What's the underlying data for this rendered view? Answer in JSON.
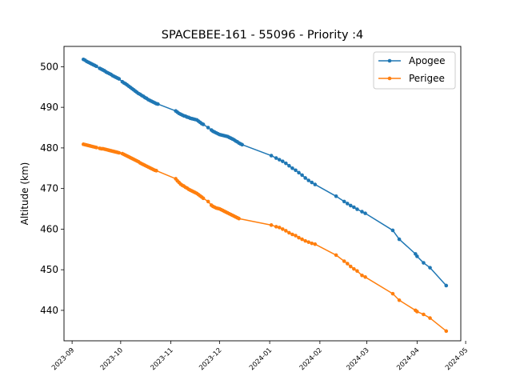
{
  "chart_data": {
    "type": "line",
    "title": "SPACEBEE-161 - 55096 - Priority :4",
    "xlabel": "",
    "ylabel": "Altitude (km)",
    "x_axis_type": "date",
    "xlim": [
      "2023-08-27",
      "2024-04-28"
    ],
    "ylim": [
      432.5,
      505
    ],
    "y_ticks": [
      440,
      450,
      460,
      470,
      480,
      490,
      500
    ],
    "x_ticks": [
      "2023-09",
      "2023-10",
      "2023-11",
      "2023-12",
      "2024-01",
      "2024-02",
      "2024-03",
      "2024-04",
      "2024-05"
    ],
    "grid": false,
    "legend_position": "top-right",
    "series": [
      {
        "name": "Apogee",
        "color": "#1f77b4",
        "marker": "circle",
        "points": [
          [
            "2023-09-08",
            501.8
          ],
          [
            "2023-09-09",
            501.6
          ],
          [
            "2023-09-10",
            501.3
          ],
          [
            "2023-09-11",
            501.1
          ],
          [
            "2023-09-12",
            500.9
          ],
          [
            "2023-09-13",
            500.7
          ],
          [
            "2023-09-14",
            500.5
          ],
          [
            "2023-09-15",
            500.3
          ],
          [
            "2023-09-16",
            500.1
          ],
          [
            "2023-09-18",
            499.6
          ],
          [
            "2023-09-19",
            499.4
          ],
          [
            "2023-09-20",
            499.2
          ],
          [
            "2023-09-21",
            499.0
          ],
          [
            "2023-09-22",
            498.7
          ],
          [
            "2023-09-23",
            498.5
          ],
          [
            "2023-09-24",
            498.3
          ],
          [
            "2023-09-25",
            498.1
          ],
          [
            "2023-09-26",
            497.8
          ],
          [
            "2023-09-27",
            497.6
          ],
          [
            "2023-09-28",
            497.4
          ],
          [
            "2023-09-29",
            497.2
          ],
          [
            "2023-09-30",
            497.0
          ],
          [
            "2023-10-02",
            496.3
          ],
          [
            "2023-10-03",
            496.0
          ],
          [
            "2023-10-04",
            495.8
          ],
          [
            "2023-10-05",
            495.5
          ],
          [
            "2023-10-06",
            495.2
          ],
          [
            "2023-10-07",
            494.9
          ],
          [
            "2023-10-08",
            494.6
          ],
          [
            "2023-10-09",
            494.3
          ],
          [
            "2023-10-10",
            494.0
          ],
          [
            "2023-10-11",
            493.7
          ],
          [
            "2023-10-12",
            493.4
          ],
          [
            "2023-10-13",
            493.2
          ],
          [
            "2023-10-14",
            492.9
          ],
          [
            "2023-10-15",
            492.7
          ],
          [
            "2023-10-16",
            492.4
          ],
          [
            "2023-10-17",
            492.2
          ],
          [
            "2023-10-18",
            491.9
          ],
          [
            "2023-10-19",
            491.7
          ],
          [
            "2023-10-20",
            491.5
          ],
          [
            "2023-10-21",
            491.3
          ],
          [
            "2023-10-22",
            491.1
          ],
          [
            "2023-10-23",
            490.9
          ],
          [
            "2023-10-24",
            490.8
          ],
          [
            "2023-11-04",
            489.1
          ],
          [
            "2023-11-05",
            488.8
          ],
          [
            "2023-11-06",
            488.5
          ],
          [
            "2023-11-07",
            488.3
          ],
          [
            "2023-11-08",
            488.1
          ],
          [
            "2023-11-09",
            487.9
          ],
          [
            "2023-11-10",
            487.8
          ],
          [
            "2023-11-11",
            487.6
          ],
          [
            "2023-11-12",
            487.5
          ],
          [
            "2023-11-13",
            487.3
          ],
          [
            "2023-11-14",
            487.2
          ],
          [
            "2023-11-15",
            487.1
          ],
          [
            "2023-11-16",
            487.0
          ],
          [
            "2023-11-17",
            486.9
          ],
          [
            "2023-11-18",
            486.6
          ],
          [
            "2023-11-19",
            486.3
          ],
          [
            "2023-11-20",
            486.0
          ],
          [
            "2023-11-21",
            485.8
          ],
          [
            "2023-11-24",
            485.0
          ],
          [
            "2023-11-26",
            484.4
          ],
          [
            "2023-11-27",
            484.1
          ],
          [
            "2023-11-28",
            483.9
          ],
          [
            "2023-11-29",
            483.7
          ],
          [
            "2023-11-30",
            483.5
          ],
          [
            "2023-12-01",
            483.3
          ],
          [
            "2023-12-02",
            483.2
          ],
          [
            "2023-12-03",
            483.1
          ],
          [
            "2023-12-04",
            483.0
          ],
          [
            "2023-12-05",
            482.9
          ],
          [
            "2023-12-06",
            482.8
          ],
          [
            "2023-12-07",
            482.6
          ],
          [
            "2023-12-08",
            482.4
          ],
          [
            "2023-12-09",
            482.2
          ],
          [
            "2023-12-10",
            482.0
          ],
          [
            "2023-12-11",
            481.7
          ],
          [
            "2023-12-12",
            481.5
          ],
          [
            "2023-12-13",
            481.2
          ],
          [
            "2023-12-14",
            481.0
          ],
          [
            "2023-12-15",
            480.8
          ],
          [
            "2024-01-02",
            478.1
          ],
          [
            "2024-01-05",
            477.5
          ],
          [
            "2024-01-07",
            477.1
          ],
          [
            "2024-01-09",
            476.7
          ],
          [
            "2024-01-11",
            476.2
          ],
          [
            "2024-01-13",
            475.6
          ],
          [
            "2024-01-15",
            475.0
          ],
          [
            "2024-01-17",
            474.5
          ],
          [
            "2024-01-19",
            473.9
          ],
          [
            "2024-01-21",
            473.3
          ],
          [
            "2024-01-23",
            472.6
          ],
          [
            "2024-01-25",
            472.0
          ],
          [
            "2024-01-27",
            471.5
          ],
          [
            "2024-01-29",
            471.0
          ],
          [
            "2024-02-11",
            468.1
          ],
          [
            "2024-02-16",
            466.8
          ],
          [
            "2024-02-18",
            466.3
          ],
          [
            "2024-02-20",
            465.8
          ],
          [
            "2024-02-22",
            465.4
          ],
          [
            "2024-02-24",
            464.9
          ],
          [
            "2024-02-27",
            464.3
          ],
          [
            "2024-02-29",
            463.9
          ],
          [
            "2024-03-17",
            459.7
          ],
          [
            "2024-03-21",
            457.5
          ],
          [
            "2024-03-31",
            453.9
          ],
          [
            "2024-04-01",
            453.3
          ],
          [
            "2024-04-05",
            451.7
          ],
          [
            "2024-04-09",
            450.5
          ],
          [
            "2024-04-19",
            446.1
          ]
        ]
      },
      {
        "name": "Perigee",
        "color": "#ff7f0e",
        "marker": "circle",
        "points": [
          [
            "2023-09-08",
            480.9
          ],
          [
            "2023-09-09",
            480.8
          ],
          [
            "2023-09-10",
            480.7
          ],
          [
            "2023-09-11",
            480.6
          ],
          [
            "2023-09-12",
            480.5
          ],
          [
            "2023-09-13",
            480.4
          ],
          [
            "2023-09-14",
            480.3
          ],
          [
            "2023-09-15",
            480.2
          ],
          [
            "2023-09-16",
            480.1
          ],
          [
            "2023-09-18",
            479.9
          ],
          [
            "2023-09-19",
            479.8
          ],
          [
            "2023-09-20",
            479.8
          ],
          [
            "2023-09-21",
            479.7
          ],
          [
            "2023-09-22",
            479.6
          ],
          [
            "2023-09-23",
            479.5
          ],
          [
            "2023-09-24",
            479.4
          ],
          [
            "2023-09-25",
            479.3
          ],
          [
            "2023-09-26",
            479.2
          ],
          [
            "2023-09-27",
            479.1
          ],
          [
            "2023-09-28",
            479.0
          ],
          [
            "2023-09-29",
            478.9
          ],
          [
            "2023-09-30",
            478.8
          ],
          [
            "2023-10-02",
            478.6
          ],
          [
            "2023-10-03",
            478.4
          ],
          [
            "2023-10-04",
            478.2
          ],
          [
            "2023-10-05",
            478.0
          ],
          [
            "2023-10-06",
            477.8
          ],
          [
            "2023-10-07",
            477.6
          ],
          [
            "2023-10-08",
            477.4
          ],
          [
            "2023-10-09",
            477.2
          ],
          [
            "2023-10-10",
            477.0
          ],
          [
            "2023-10-11",
            476.8
          ],
          [
            "2023-10-12",
            476.6
          ],
          [
            "2023-10-13",
            476.3
          ],
          [
            "2023-10-14",
            476.1
          ],
          [
            "2023-10-15",
            475.9
          ],
          [
            "2023-10-16",
            475.7
          ],
          [
            "2023-10-17",
            475.5
          ],
          [
            "2023-10-18",
            475.3
          ],
          [
            "2023-10-19",
            475.1
          ],
          [
            "2023-10-20",
            474.9
          ],
          [
            "2023-10-21",
            474.7
          ],
          [
            "2023-10-22",
            474.5
          ],
          [
            "2023-10-23",
            474.4
          ],
          [
            "2023-11-04",
            472.4
          ],
          [
            "2023-11-05",
            471.9
          ],
          [
            "2023-11-06",
            471.5
          ],
          [
            "2023-11-07",
            471.1
          ],
          [
            "2023-11-08",
            470.8
          ],
          [
            "2023-11-09",
            470.6
          ],
          [
            "2023-11-10",
            470.3
          ],
          [
            "2023-11-11",
            470.1
          ],
          [
            "2023-11-12",
            469.8
          ],
          [
            "2023-11-13",
            469.6
          ],
          [
            "2023-11-14",
            469.4
          ],
          [
            "2023-11-15",
            469.2
          ],
          [
            "2023-11-16",
            469.0
          ],
          [
            "2023-11-17",
            468.8
          ],
          [
            "2023-11-18",
            468.5
          ],
          [
            "2023-11-19",
            468.2
          ],
          [
            "2023-11-20",
            467.9
          ],
          [
            "2023-11-21",
            467.6
          ],
          [
            "2023-11-24",
            466.8
          ],
          [
            "2023-11-26",
            465.9
          ],
          [
            "2023-11-27",
            465.6
          ],
          [
            "2023-11-28",
            465.4
          ],
          [
            "2023-11-29",
            465.2
          ],
          [
            "2023-11-30",
            465.1
          ],
          [
            "2023-12-01",
            465.0
          ],
          [
            "2023-12-02",
            464.8
          ],
          [
            "2023-12-03",
            464.6
          ],
          [
            "2023-12-04",
            464.4
          ],
          [
            "2023-12-05",
            464.2
          ],
          [
            "2023-12-06",
            464.0
          ],
          [
            "2023-12-07",
            463.8
          ],
          [
            "2023-12-08",
            463.6
          ],
          [
            "2023-12-09",
            463.4
          ],
          [
            "2023-12-10",
            463.2
          ],
          [
            "2023-12-11",
            463.0
          ],
          [
            "2023-12-12",
            462.8
          ],
          [
            "2023-12-13",
            462.6
          ],
          [
            "2024-01-02",
            461.0
          ],
          [
            "2024-01-05",
            460.6
          ],
          [
            "2024-01-07",
            460.4
          ],
          [
            "2024-01-09",
            460.0
          ],
          [
            "2024-01-11",
            459.6
          ],
          [
            "2024-01-13",
            459.1
          ],
          [
            "2024-01-15",
            458.7
          ],
          [
            "2024-01-17",
            458.4
          ],
          [
            "2024-01-19",
            457.9
          ],
          [
            "2024-01-21",
            457.5
          ],
          [
            "2024-01-23",
            457.1
          ],
          [
            "2024-01-25",
            456.8
          ],
          [
            "2024-01-27",
            456.5
          ],
          [
            "2024-01-29",
            456.3
          ],
          [
            "2024-02-11",
            453.6
          ],
          [
            "2024-02-16",
            452.1
          ],
          [
            "2024-02-18",
            451.5
          ],
          [
            "2024-02-20",
            450.8
          ],
          [
            "2024-02-22",
            450.2
          ],
          [
            "2024-02-24",
            449.7
          ],
          [
            "2024-02-27",
            448.6
          ],
          [
            "2024-02-29",
            448.2
          ],
          [
            "2024-03-17",
            444.1
          ],
          [
            "2024-03-21",
            442.5
          ],
          [
            "2024-03-31",
            440.0
          ],
          [
            "2024-04-01",
            439.7
          ],
          [
            "2024-04-05",
            439.0
          ],
          [
            "2024-04-09",
            438.1
          ],
          [
            "2024-04-19",
            434.9
          ]
        ]
      }
    ]
  }
}
